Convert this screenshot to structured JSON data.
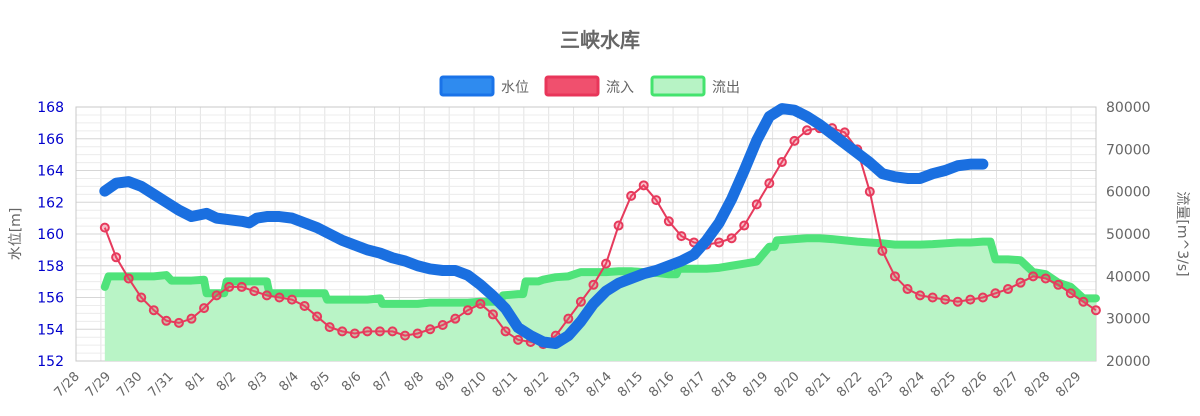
{
  "chart_data": {
    "type": "line",
    "title": "三峡水库",
    "legend": [
      {
        "name": "水位",
        "color": "#1a73e8",
        "fill": "#2f8bef"
      },
      {
        "name": "流入",
        "color": "#e8365a",
        "fill": "#f0506e"
      },
      {
        "name": "流出",
        "color": "#44e36e",
        "fill": "#b7f3c5"
      }
    ],
    "legend_position": "top-center",
    "y_left": {
      "label": "水位[m]",
      "min": 152,
      "max": 168,
      "step": 2,
      "ticks": [
        "152",
        "154",
        "156",
        "158",
        "160",
        "162",
        "164",
        "166",
        "168"
      ]
    },
    "y_right": {
      "label": "流量[m^3/s]",
      "min": 20000,
      "max": 80000,
      "step": 10000,
      "ticks": [
        "20000",
        "30000",
        "40000",
        "50000",
        "60000",
        "70000",
        "80000"
      ]
    },
    "x_labels": [
      "7/28",
      "7/29",
      "7/30",
      "7/31",
      "8/1",
      "8/2",
      "8/3",
      "8/4",
      "8/5",
      "8/6",
      "8/7",
      "8/8",
      "8/9",
      "8/10",
      "8/11",
      "8/12",
      "8/13",
      "8/14",
      "8/15",
      "8/16",
      "8/17",
      "8/18",
      "8/19",
      "8/20",
      "8/21",
      "8/22",
      "8/23",
      "8/24",
      "8/25",
      "8/26",
      "8/27",
      "8/28",
      "8/29"
    ],
    "grid": true,
    "series": [
      {
        "name": "水位",
        "axis": "left",
        "points": [
          [
            0.55,
            162.7
          ],
          [
            1.0,
            163.2
          ],
          [
            1.5,
            163.3
          ],
          [
            2.0,
            163.0
          ],
          [
            2.5,
            162.5
          ],
          [
            3.0,
            162.0
          ],
          [
            3.5,
            161.5
          ],
          [
            4.0,
            161.1
          ],
          [
            4.3,
            161.2
          ],
          [
            4.6,
            161.3
          ],
          [
            5.0,
            161.0
          ],
          [
            5.5,
            160.9
          ],
          [
            6.0,
            160.8
          ],
          [
            6.3,
            160.7
          ],
          [
            6.6,
            161.0
          ],
          [
            7.0,
            161.1
          ],
          [
            7.5,
            161.1
          ],
          [
            8.0,
            161.0
          ],
          [
            8.5,
            160.7
          ],
          [
            9.0,
            160.4
          ],
          [
            9.5,
            160.0
          ],
          [
            10.0,
            159.6
          ],
          [
            10.5,
            159.3
          ],
          [
            11.0,
            159.0
          ],
          [
            11.5,
            158.8
          ],
          [
            12.0,
            158.5
          ],
          [
            12.5,
            158.3
          ],
          [
            13.0,
            158.0
          ],
          [
            13.5,
            157.8
          ],
          [
            14.0,
            157.7
          ],
          [
            14.5,
            157.7
          ],
          [
            15.0,
            157.4
          ],
          [
            15.5,
            156.8
          ],
          [
            16.0,
            156.1
          ],
          [
            16.5,
            155.3
          ],
          [
            17.0,
            154.1
          ],
          [
            17.5,
            153.6
          ],
          [
            18.0,
            153.2
          ],
          [
            18.5,
            153.1
          ],
          [
            19.0,
            153.6
          ],
          [
            19.5,
            154.5
          ],
          [
            20.0,
            155.6
          ],
          [
            20.5,
            156.4
          ],
          [
            21.0,
            156.9
          ],
          [
            21.5,
            157.2
          ],
          [
            22.0,
            157.5
          ],
          [
            22.5,
            157.7
          ],
          [
            23.0,
            158.0
          ],
          [
            23.5,
            158.3
          ],
          [
            24.0,
            158.7
          ],
          [
            24.5,
            159.6
          ],
          [
            25.0,
            160.7
          ],
          [
            25.5,
            162.2
          ],
          [
            26.0,
            164.0
          ],
          [
            26.5,
            165.9
          ],
          [
            27.0,
            167.4
          ],
          [
            27.5,
            167.9
          ],
          [
            28.0,
            167.8
          ],
          [
            28.5,
            167.4
          ],
          [
            29.0,
            166.9
          ],
          [
            29.5,
            166.3
          ],
          [
            30.0,
            165.7
          ],
          [
            30.5,
            165.1
          ],
          [
            31.0,
            164.5
          ],
          [
            31.5,
            163.8
          ],
          [
            32.0,
            163.6
          ],
          [
            32.5,
            163.5
          ],
          [
            33.0,
            163.5
          ],
          [
            33.5,
            163.8
          ],
          [
            34.0,
            164.0
          ],
          [
            34.5,
            164.3
          ],
          [
            35.0,
            164.4
          ],
          [
            35.5,
            164.4
          ]
        ]
      },
      {
        "name": "流入",
        "axis": "right",
        "points": [
          [
            0.55,
            51500
          ],
          [
            1.0,
            44500
          ],
          [
            1.5,
            39500
          ],
          [
            2.0,
            35000
          ],
          [
            2.5,
            32000
          ],
          [
            3.0,
            29500
          ],
          [
            3.5,
            29000
          ],
          [
            4.0,
            30000
          ],
          [
            4.5,
            32500
          ],
          [
            5.0,
            35500
          ],
          [
            5.5,
            37500
          ],
          [
            6.0,
            37500
          ],
          [
            6.5,
            36500
          ],
          [
            7.0,
            35500
          ],
          [
            7.5,
            35000
          ],
          [
            8.0,
            34500
          ],
          [
            8.5,
            33000
          ],
          [
            9.0,
            30500
          ],
          [
            9.5,
            28000
          ],
          [
            10.0,
            27000
          ],
          [
            10.5,
            26500
          ],
          [
            11.0,
            27000
          ],
          [
            11.5,
            27000
          ],
          [
            12.0,
            27000
          ],
          [
            12.5,
            26000
          ],
          [
            13.0,
            26500
          ],
          [
            13.5,
            27500
          ],
          [
            14.0,
            28500
          ],
          [
            14.5,
            30000
          ],
          [
            15.0,
            32000
          ],
          [
            15.5,
            33500
          ],
          [
            16.0,
            31000
          ],
          [
            16.5,
            27000
          ],
          [
            17.0,
            25000
          ],
          [
            17.5,
            24500
          ],
          [
            18.0,
            24000
          ],
          [
            18.5,
            26000
          ],
          [
            19.0,
            30000
          ],
          [
            19.5,
            34000
          ],
          [
            20.0,
            38000
          ],
          [
            20.5,
            43000
          ],
          [
            21.0,
            52000
          ],
          [
            21.5,
            59000
          ],
          [
            22.0,
            61500
          ],
          [
            22.5,
            58000
          ],
          [
            23.0,
            53000
          ],
          [
            23.5,
            49500
          ],
          [
            24.0,
            48000
          ],
          [
            24.5,
            47500
          ],
          [
            25.0,
            48000
          ],
          [
            25.5,
            49000
          ],
          [
            26.0,
            52000
          ],
          [
            26.5,
            57000
          ],
          [
            27.0,
            62000
          ],
          [
            27.5,
            67000
          ],
          [
            28.0,
            72000
          ],
          [
            28.5,
            74500
          ],
          [
            29.0,
            75000
          ],
          [
            29.5,
            75000
          ],
          [
            30.0,
            74000
          ],
          [
            30.5,
            70000
          ],
          [
            31.0,
            60000
          ],
          [
            31.5,
            46000
          ],
          [
            32.0,
            40000
          ],
          [
            32.5,
            37000
          ],
          [
            33.0,
            35500
          ],
          [
            33.5,
            35000
          ],
          [
            34.0,
            34500
          ],
          [
            34.5,
            34000
          ],
          [
            35.0,
            34500
          ],
          [
            35.5,
            35000
          ],
          [
            36.0,
            36000
          ],
          [
            36.5,
            37000
          ],
          [
            37.0,
            38500
          ],
          [
            37.5,
            40000
          ],
          [
            38.0,
            39500
          ],
          [
            38.5,
            38000
          ],
          [
            39.0,
            36000
          ],
          [
            39.5,
            34000
          ],
          [
            40.0,
            32000
          ]
        ]
      },
      {
        "name": "流出",
        "axis": "right",
        "points": [
          [
            0.55,
            37500
          ],
          [
            0.7,
            40000
          ],
          [
            1.0,
            40000
          ],
          [
            1.5,
            40000
          ],
          [
            2.0,
            40000
          ],
          [
            2.5,
            40000
          ],
          [
            3.0,
            40300
          ],
          [
            3.2,
            39000
          ],
          [
            3.5,
            39000
          ],
          [
            4.0,
            39000
          ],
          [
            4.5,
            39200
          ],
          [
            4.6,
            36000
          ],
          [
            5.0,
            36000
          ],
          [
            5.3,
            36000
          ],
          [
            5.4,
            38800
          ],
          [
            6.0,
            38800
          ],
          [
            6.5,
            38800
          ],
          [
            7.0,
            38800
          ],
          [
            7.1,
            36000
          ],
          [
            7.5,
            36000
          ],
          [
            8.0,
            36000
          ],
          [
            8.5,
            36000
          ],
          [
            9.0,
            36000
          ],
          [
            9.3,
            36000
          ],
          [
            9.4,
            34500
          ],
          [
            10.0,
            34500
          ],
          [
            10.5,
            34500
          ],
          [
            11.0,
            34500
          ],
          [
            11.5,
            34800
          ],
          [
            11.6,
            33500
          ],
          [
            12.0,
            33500
          ],
          [
            12.5,
            33500
          ],
          [
            13.0,
            33500
          ],
          [
            13.5,
            33800
          ],
          [
            14.0,
            33800
          ],
          [
            14.5,
            33800
          ],
          [
            15.0,
            33800
          ],
          [
            15.5,
            34000
          ],
          [
            16.0,
            34000
          ],
          [
            16.3,
            34000
          ],
          [
            16.4,
            35500
          ],
          [
            17.0,
            35800
          ],
          [
            17.2,
            35800
          ],
          [
            17.3,
            38800
          ],
          [
            17.8,
            38800
          ],
          [
            18.0,
            39200
          ],
          [
            18.5,
            39800
          ],
          [
            19.0,
            40000
          ],
          [
            19.5,
            41000
          ],
          [
            20.0,
            41000
          ],
          [
            20.5,
            41000
          ],
          [
            21.0,
            41200
          ],
          [
            21.5,
            41200
          ],
          [
            22.0,
            41000
          ],
          [
            22.5,
            40800
          ],
          [
            23.0,
            40500
          ],
          [
            23.3,
            40500
          ],
          [
            23.4,
            41800
          ],
          [
            24.0,
            41800
          ],
          [
            24.5,
            41800
          ],
          [
            25.0,
            42000
          ],
          [
            25.5,
            42500
          ],
          [
            26.0,
            43000
          ],
          [
            26.5,
            43500
          ],
          [
            27.0,
            47000
          ],
          [
            27.2,
            47000
          ],
          [
            27.3,
            48500
          ],
          [
            28.0,
            48800
          ],
          [
            28.5,
            49000
          ],
          [
            29.0,
            49000
          ],
          [
            29.5,
            48800
          ],
          [
            30.0,
            48500
          ],
          [
            30.5,
            48200
          ],
          [
            31.0,
            48000
          ],
          [
            31.5,
            47800
          ],
          [
            32.0,
            47500
          ],
          [
            32.5,
            47500
          ],
          [
            33.0,
            47500
          ],
          [
            33.5,
            47600
          ],
          [
            34.0,
            47800
          ],
          [
            34.5,
            48000
          ],
          [
            35.0,
            48000
          ],
          [
            35.5,
            48200
          ],
          [
            35.8,
            48200
          ],
          [
            36.0,
            44000
          ],
          [
            36.5,
            44000
          ],
          [
            37.0,
            43800
          ],
          [
            37.5,
            41000
          ],
          [
            38.0,
            40500
          ],
          [
            38.5,
            38500
          ],
          [
            39.0,
            37500
          ],
          [
            39.5,
            34800
          ],
          [
            40.0,
            34800
          ]
        ]
      }
    ]
  }
}
